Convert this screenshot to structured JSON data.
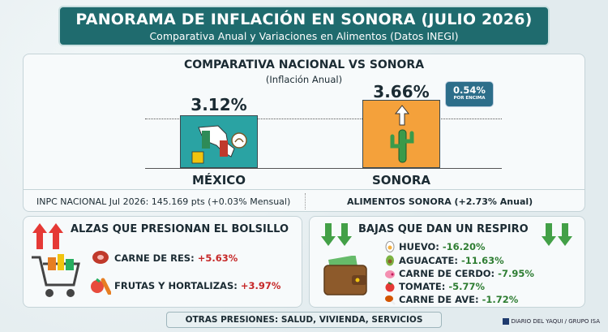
{
  "header": {
    "title": "PANORAMA DE INFLACIÓN EN SONORA (JULIO 2026)",
    "subtitle": "Comparativa Anual y Variaciones en Alimentos (Datos INEGI)"
  },
  "comparison": {
    "title": "COMPARATIVA NACIONAL VS SONORA",
    "subtitle": "(Inflación Anual)",
    "mexico": {
      "label": "MÉXICO",
      "value_text": "3.12%",
      "value": 3.12
    },
    "sonora": {
      "label": "SONORA",
      "value_text": "3.66%",
      "value": 3.66
    },
    "callout": {
      "value": "0.54%",
      "text": "POR ENCIMA"
    },
    "inpc_note": "INPC NACIONAL Jul 2026: 145.169 pts (+0.03% Mensual)",
    "alimentos_note": "ALIMENTOS SONORA (+2.73% Anual)"
  },
  "alzas": {
    "title": "ALZAS QUE PRESIONAN EL BOLSILLO",
    "items": [
      {
        "label": "CARNE DE RES: ",
        "value": "+5.63%"
      },
      {
        "label": "FRUTAS Y HORTALIZAS: ",
        "value": "+3.97%"
      }
    ]
  },
  "bajas": {
    "title": "BAJAS QUE DAN UN RESPIRO",
    "items": [
      {
        "label": "HUEVO: ",
        "value": "-16.20%"
      },
      {
        "label": "AGUACATE: ",
        "value": "-11.63%"
      },
      {
        "label": "CARNE DE CERDO: ",
        "value": "-7.95%"
      },
      {
        "label": "TOMATE: ",
        "value": "-5.77%"
      },
      {
        "label": "CARNE DE AVE: ",
        "value": "-1.72%"
      }
    ]
  },
  "footer": {
    "text": "OTRAS PRESIONES: SALUD, VIVIENDA, SERVICIOS",
    "credit": "DIARIO DEL YAQUI / GRUPO ISA"
  },
  "colors": {
    "up": "#c62828",
    "down": "#2e7d32",
    "header": "#1f6b6e",
    "mexico_bar": "#2aa3a3",
    "sonora_bar": "#f4a13b"
  }
}
